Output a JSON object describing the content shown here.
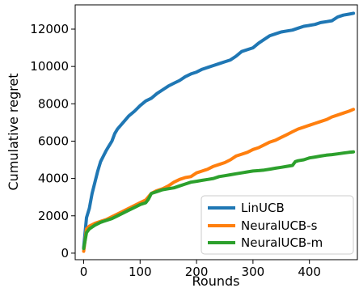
{
  "chart_data": {
    "type": "line",
    "xlabel": "Rounds",
    "ylabel": "Cumulative regret",
    "xlim": [
      -15,
      485
    ],
    "ylim": [
      -350,
      13300
    ],
    "xticks": [
      0,
      100,
      200,
      300,
      400
    ],
    "yticks": [
      0,
      2000,
      4000,
      6000,
      8000,
      10000,
      12000
    ],
    "grid": false,
    "legend_position": "bottom-right",
    "series": [
      {
        "name": "LinUCB",
        "color": "#1f77b4",
        "x": [
          0,
          5,
          10,
          15,
          20,
          25,
          30,
          35,
          40,
          45,
          50,
          55,
          60,
          70,
          80,
          90,
          100,
          110,
          120,
          130,
          140,
          150,
          160,
          170,
          180,
          190,
          200,
          210,
          220,
          230,
          240,
          250,
          260,
          270,
          280,
          290,
          300,
          310,
          320,
          330,
          340,
          350,
          360,
          370,
          380,
          390,
          400,
          410,
          420,
          430,
          440,
          450,
          460,
          470,
          478
        ],
        "values": [
          300,
          1900,
          2400,
          3200,
          3800,
          4400,
          4900,
          5200,
          5500,
          5750,
          6000,
          6400,
          6650,
          7000,
          7350,
          7600,
          7900,
          8150,
          8300,
          8550,
          8750,
          8950,
          9100,
          9250,
          9450,
          9600,
          9700,
          9850,
          9950,
          10050,
          10150,
          10250,
          10350,
          10550,
          10800,
          10900,
          11000,
          11250,
          11450,
          11650,
          11750,
          11850,
          11900,
          11950,
          12050,
          12150,
          12200,
          12250,
          12350,
          12400,
          12450,
          12650,
          12750,
          12800,
          12850
        ]
      },
      {
        "name": "NeuralUCB-s",
        "color": "#ff7f0e",
        "x": [
          0,
          5,
          10,
          20,
          30,
          40,
          50,
          60,
          70,
          80,
          90,
          100,
          110,
          120,
          130,
          140,
          150,
          160,
          170,
          180,
          190,
          200,
          210,
          220,
          230,
          240,
          250,
          260,
          270,
          280,
          290,
          300,
          310,
          320,
          330,
          340,
          350,
          360,
          370,
          380,
          390,
          400,
          410,
          420,
          430,
          440,
          450,
          460,
          470,
          478
        ],
        "values": [
          100,
          1300,
          1450,
          1600,
          1700,
          1800,
          1950,
          2100,
          2250,
          2400,
          2550,
          2700,
          2850,
          3200,
          3350,
          3450,
          3600,
          3800,
          3950,
          4050,
          4100,
          4300,
          4400,
          4500,
          4650,
          4750,
          4850,
          5000,
          5200,
          5300,
          5400,
          5550,
          5650,
          5800,
          5950,
          6050,
          6200,
          6350,
          6500,
          6650,
          6750,
          6850,
          6950,
          7050,
          7150,
          7300,
          7400,
          7500,
          7600,
          7700
        ]
      },
      {
        "name": "NeuralUCB-m",
        "color": "#2ca02c",
        "x": [
          0,
          5,
          10,
          20,
          30,
          40,
          50,
          60,
          70,
          80,
          90,
          100,
          110,
          115,
          120,
          130,
          140,
          150,
          160,
          170,
          180,
          190,
          200,
          210,
          220,
          230,
          240,
          250,
          260,
          270,
          280,
          290,
          300,
          310,
          320,
          330,
          340,
          350,
          360,
          370,
          375,
          380,
          390,
          400,
          410,
          420,
          430,
          440,
          450,
          460,
          470,
          478
        ],
        "values": [
          250,
          1100,
          1300,
          1500,
          1650,
          1750,
          1850,
          2000,
          2150,
          2300,
          2450,
          2600,
          2700,
          2900,
          3200,
          3300,
          3400,
          3450,
          3500,
          3600,
          3700,
          3800,
          3850,
          3900,
          3950,
          4000,
          4100,
          4150,
          4200,
          4250,
          4300,
          4350,
          4400,
          4420,
          4450,
          4500,
          4550,
          4600,
          4650,
          4700,
          4900,
          4950,
          5000,
          5100,
          5150,
          5200,
          5250,
          5280,
          5320,
          5360,
          5400,
          5420
        ]
      }
    ]
  }
}
